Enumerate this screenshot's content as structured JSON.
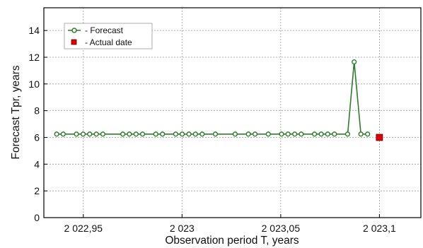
{
  "chart_data": {
    "type": "line",
    "title": "",
    "xlabel": "Observation period T, years",
    "ylabel": "Forecast Tpr, years",
    "xlim": [
      2022.93,
      2023.121
    ],
    "ylim": [
      0,
      15.7
    ],
    "x_ticks": [
      {
        "value": 2022.95,
        "label": "2 022,95"
      },
      {
        "value": 2023.0,
        "label": "2 023"
      },
      {
        "value": 2023.05,
        "label": "2 023,05"
      },
      {
        "value": 2023.1,
        "label": "2 023,1"
      }
    ],
    "y_ticks": [
      {
        "value": 0,
        "label": "0"
      },
      {
        "value": 2,
        "label": "2"
      },
      {
        "value": 4,
        "label": "4"
      },
      {
        "value": 6,
        "label": "6"
      },
      {
        "value": 8,
        "label": "8"
      },
      {
        "value": 10,
        "label": "10"
      },
      {
        "value": 12,
        "label": "12"
      },
      {
        "value": 14,
        "label": "14"
      }
    ],
    "grid": true,
    "legend_position": "top-left",
    "series": [
      {
        "name": "-  Forecast",
        "color": "#2d7d2d",
        "marker": "open-circle",
        "points": [
          [
            2022.9365,
            6.25
          ],
          [
            2022.9398,
            6.25
          ],
          [
            2022.9465,
            6.25
          ],
          [
            2022.9499,
            6.25
          ],
          [
            2022.9532,
            6.25
          ],
          [
            2022.9566,
            6.25
          ],
          [
            2022.9599,
            6.25
          ],
          [
            2022.97,
            6.25
          ],
          [
            2022.9733,
            6.25
          ],
          [
            2022.9767,
            6.25
          ],
          [
            2022.98,
            6.25
          ],
          [
            2022.9867,
            6.25
          ],
          [
            2022.9901,
            6.25
          ],
          [
            2022.9968,
            6.25
          ],
          [
            2023.0001,
            6.25
          ],
          [
            2023.0035,
            6.25
          ],
          [
            2023.0068,
            6.25
          ],
          [
            2023.0102,
            6.25
          ],
          [
            2023.0169,
            6.25
          ],
          [
            2023.0269,
            6.25
          ],
          [
            2023.0336,
            6.25
          ],
          [
            2023.037,
            6.25
          ],
          [
            2023.0437,
            6.25
          ],
          [
            2023.0504,
            6.25
          ],
          [
            2023.0537,
            6.25
          ],
          [
            2023.0571,
            6.25
          ],
          [
            2023.0604,
            6.25
          ],
          [
            2023.0671,
            6.25
          ],
          [
            2023.0705,
            6.25
          ],
          [
            2023.0738,
            6.25
          ],
          [
            2023.0772,
            6.25
          ],
          [
            2023.0839,
            6.25
          ],
          [
            2023.0872,
            11.65
          ],
          [
            2023.0906,
            6.25
          ],
          [
            2023.094,
            6.25
          ]
        ]
      },
      {
        "name": "-  Actual date",
        "color": "#dd0000",
        "marker": "filled-square",
        "points": [
          [
            2023.1,
            6.0
          ]
        ]
      }
    ]
  }
}
